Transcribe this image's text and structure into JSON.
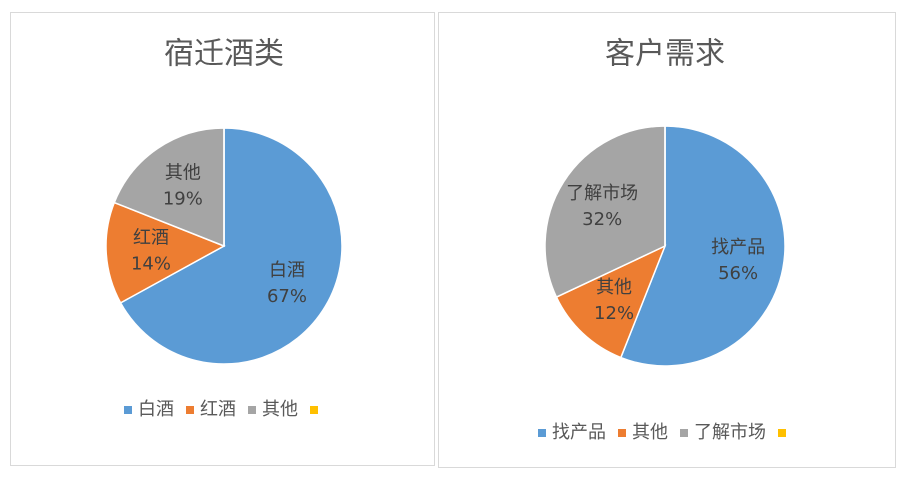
{
  "chart_data": [
    {
      "type": "pie",
      "title": "宿迁酒类",
      "categories": [
        "白酒",
        "红酒",
        "其他",
        null
      ],
      "values": [
        67,
        14,
        19,
        0
      ],
      "value_labels": [
        "67%",
        "14%",
        "19%",
        null
      ],
      "colors": [
        "#5b9bd5",
        "#ed7d31",
        "#a5a5a5",
        "#ffc000"
      ],
      "legend": "bottom"
    },
    {
      "type": "pie",
      "title": "客户需求",
      "categories": [
        "找产品",
        "其他",
        "了解市场",
        null
      ],
      "values": [
        56,
        12,
        32,
        0
      ],
      "value_labels": [
        "56%",
        "12%",
        "32%",
        null
      ],
      "colors": [
        "#5b9bd5",
        "#ed7d31",
        "#a5a5a5",
        "#ffc000"
      ],
      "legend": "bottom"
    }
  ]
}
